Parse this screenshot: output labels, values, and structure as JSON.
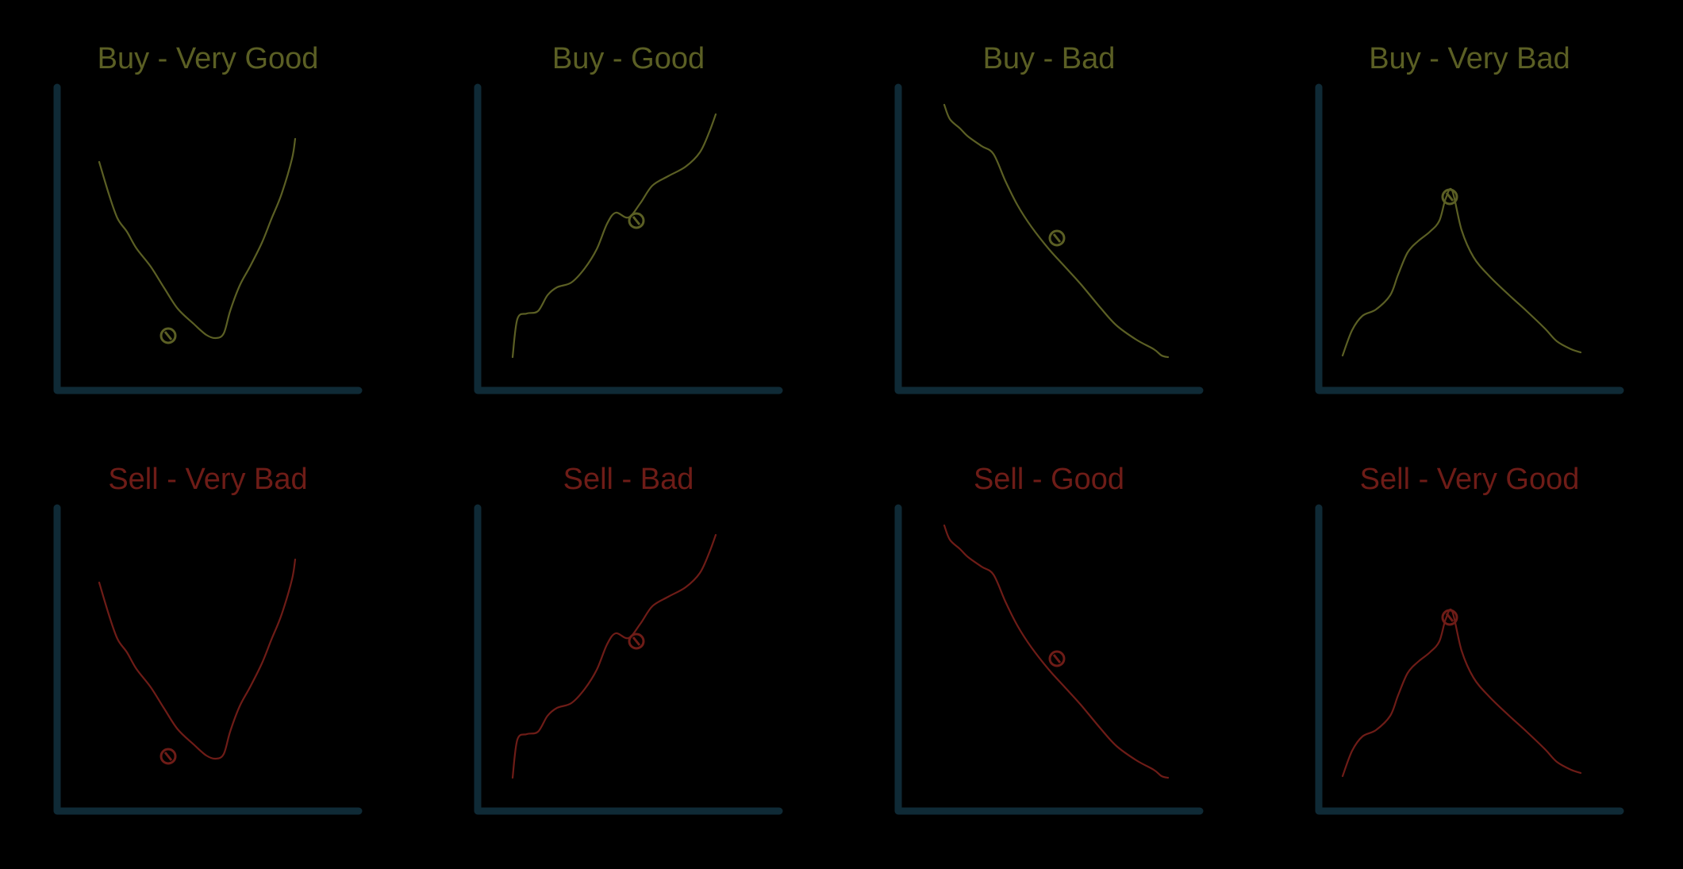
{
  "colors": {
    "background": "#000000",
    "axis": "#0f2a36",
    "buy": "#5b5f24",
    "sell": "#6e1c17"
  },
  "panels": [
    {
      "title": "Buy - Very Good",
      "side": "buy",
      "shape": "v"
    },
    {
      "title": "Buy - Good",
      "side": "buy",
      "shape": "up"
    },
    {
      "title": "Buy - Bad",
      "side": "buy",
      "shape": "down"
    },
    {
      "title": "Buy - Very Bad",
      "side": "buy",
      "shape": "peak"
    },
    {
      "title": "Sell - Very Bad",
      "side": "sell",
      "shape": "v"
    },
    {
      "title": "Sell -  Bad",
      "side": "sell",
      "shape": "up"
    },
    {
      "title": "Sell - Good",
      "side": "sell",
      "shape": "down"
    },
    {
      "title": "Sell - Very Good",
      "side": "sell",
      "shape": "peak"
    }
  ]
}
